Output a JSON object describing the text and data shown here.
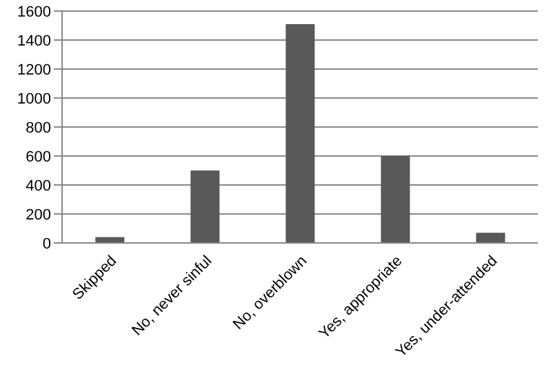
{
  "chart_data": {
    "type": "bar",
    "categories": [
      "Skipped",
      "No, never sinful",
      "No, overblown",
      "Yes, appropriate",
      "Yes, under-attended"
    ],
    "values": [
      40,
      500,
      1510,
      600,
      70
    ],
    "color": "#595959",
    "ylim": [
      0,
      1600
    ],
    "yticks": [
      0,
      200,
      400,
      600,
      800,
      1000,
      1200,
      1400,
      1600
    ],
    "grid": "y"
  }
}
